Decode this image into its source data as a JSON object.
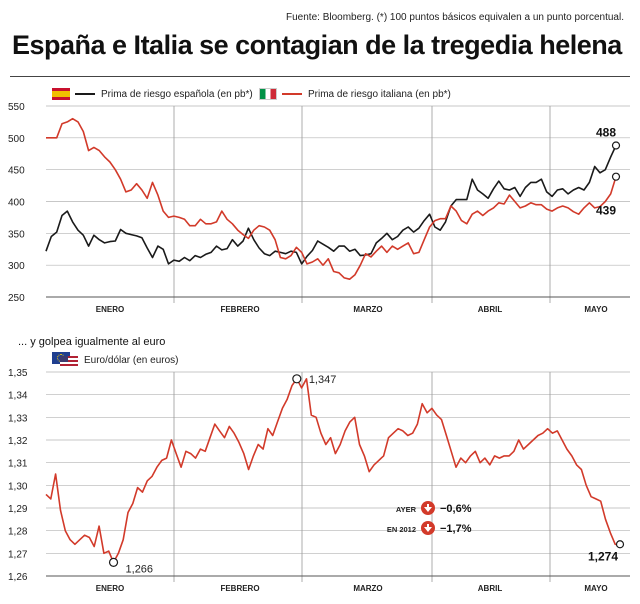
{
  "header": {
    "source": "Fuente: Bloomberg. (*) 100 puntos básicos equivalen a un punto porcentual.",
    "title": "España e Italia se contagian de la tregedia helena"
  },
  "chart_data": [
    {
      "type": "line",
      "title": "",
      "ylim": [
        250,
        550
      ],
      "yticks": [
        "550",
        "500",
        "450",
        "400",
        "350",
        "300",
        "250"
      ],
      "ytick_values": [
        550,
        500,
        450,
        400,
        350,
        300,
        250
      ],
      "month_labels": [
        "ENERO",
        "FEBRERO",
        "MARZO",
        "ABRIL",
        "MAYO"
      ],
      "grid": true,
      "legend_position": "top-left",
      "series": [
        {
          "name": "Prima de riesgo española (en pb*)",
          "color": "#1a1a1a",
          "end_label": "488",
          "values": [
            322,
            345,
            352,
            378,
            385,
            368,
            355,
            347,
            330,
            347,
            340,
            335,
            337,
            338,
            356,
            350,
            348,
            346,
            343,
            327,
            312,
            330,
            325,
            302,
            308,
            306,
            312,
            307,
            315,
            312,
            317,
            320,
            330,
            324,
            326,
            340,
            330,
            338,
            358,
            340,
            327,
            318,
            315,
            322,
            320,
            318,
            322,
            320,
            302,
            314,
            323,
            338,
            333,
            328,
            322,
            330,
            330,
            322,
            325,
            315,
            316,
            318,
            335,
            342,
            350,
            340,
            345,
            355,
            360,
            352,
            358,
            370,
            380,
            360,
            355,
            368,
            393,
            403,
            403,
            403,
            435,
            418,
            412,
            405,
            420,
            432,
            420,
            418,
            422,
            408,
            422,
            430,
            430,
            435,
            415,
            408,
            418,
            420,
            412,
            418,
            422,
            418,
            430,
            455,
            445,
            450,
            470,
            488
          ]
        },
        {
          "name": "Prima de riesgo italiana (en pb*)",
          "color": "#d23a2a",
          "end_label": "439",
          "values": [
            500,
            500,
            500,
            522,
            525,
            530,
            525,
            510,
            480,
            485,
            480,
            470,
            462,
            450,
            435,
            415,
            418,
            428,
            418,
            405,
            430,
            410,
            385,
            375,
            377,
            375,
            372,
            362,
            362,
            372,
            365,
            365,
            368,
            385,
            372,
            365,
            355,
            348,
            342,
            355,
            362,
            360,
            355,
            340,
            312,
            310,
            315,
            328,
            320,
            302,
            305,
            310,
            300,
            310,
            290,
            288,
            280,
            278,
            285,
            300,
            318,
            313,
            322,
            330,
            320,
            330,
            325,
            330,
            335,
            318,
            320,
            340,
            360,
            370,
            373,
            373,
            393,
            385,
            370,
            365,
            380,
            385,
            378,
            385,
            390,
            398,
            396,
            410,
            400,
            390,
            393,
            398,
            395,
            395,
            388,
            385,
            390,
            393,
            390,
            384,
            380,
            390,
            398,
            390,
            392,
            400,
            412,
            439
          ]
        }
      ]
    },
    {
      "type": "line",
      "title": "... y golpea igualmente al euro",
      "ylim": [
        1.26,
        1.35
      ],
      "yticks": [
        "1,35",
        "1,34",
        "1,33",
        "1,32",
        "1,31",
        "1,30",
        "1,29",
        "1,28",
        "1,27",
        "1,26"
      ],
      "ytick_values": [
        1.35,
        1.34,
        1.33,
        1.32,
        1.31,
        1.3,
        1.29,
        1.28,
        1.27,
        1.26
      ],
      "month_labels": [
        "ENERO",
        "FEBRERO",
        "MARZO",
        "ABRIL",
        "MAYO"
      ],
      "grid": true,
      "series": [
        {
          "name": "Euro/dólar (en euros)",
          "color": "#d23a2a",
          "end_label": "1,274",
          "values": [
            1.296,
            1.294,
            1.305,
            1.289,
            1.28,
            1.276,
            1.274,
            1.276,
            1.278,
            1.277,
            1.273,
            1.282,
            1.27,
            1.271,
            1.266,
            1.27,
            1.276,
            1.288,
            1.292,
            1.299,
            1.297,
            1.302,
            1.304,
            1.308,
            1.311,
            1.312,
            1.32,
            1.314,
            1.308,
            1.315,
            1.314,
            1.312,
            1.316,
            1.315,
            1.321,
            1.327,
            1.324,
            1.321,
            1.326,
            1.323,
            1.319,
            1.314,
            1.307,
            1.313,
            1.318,
            1.316,
            1.325,
            1.322,
            1.328,
            1.334,
            1.338,
            1.344,
            1.347,
            1.343,
            1.347,
            1.331,
            1.33,
            1.323,
            1.318,
            1.321,
            1.314,
            1.318,
            1.324,
            1.328,
            1.33,
            1.318,
            1.313,
            1.306,
            1.309,
            1.311,
            1.313,
            1.321,
            1.323,
            1.325,
            1.324,
            1.322,
            1.323,
            1.327,
            1.336,
            1.332,
            1.334,
            1.331,
            1.329,
            1.322,
            1.315,
            1.308,
            1.312,
            1.31,
            1.313,
            1.315,
            1.31,
            1.312,
            1.309,
            1.313,
            1.312,
            1.313,
            1.313,
            1.315,
            1.32,
            1.316,
            1.318,
            1.32,
            1.322,
            1.323,
            1.325,
            1.323,
            1.324,
            1.32,
            1.316,
            1.313,
            1.309,
            1.307,
            1.3,
            1.295,
            1.294,
            1.293,
            1.285,
            1.279,
            1.274,
            1.274
          ]
        }
      ],
      "annotations": [
        {
          "label": "1,266",
          "value": 1.266
        },
        {
          "label": "1,347",
          "value": 1.347
        }
      ],
      "changes": [
        {
          "label": "AYER",
          "value": "−0,6%"
        },
        {
          "label": "EN 2012",
          "value": "−1,7%"
        }
      ]
    }
  ]
}
